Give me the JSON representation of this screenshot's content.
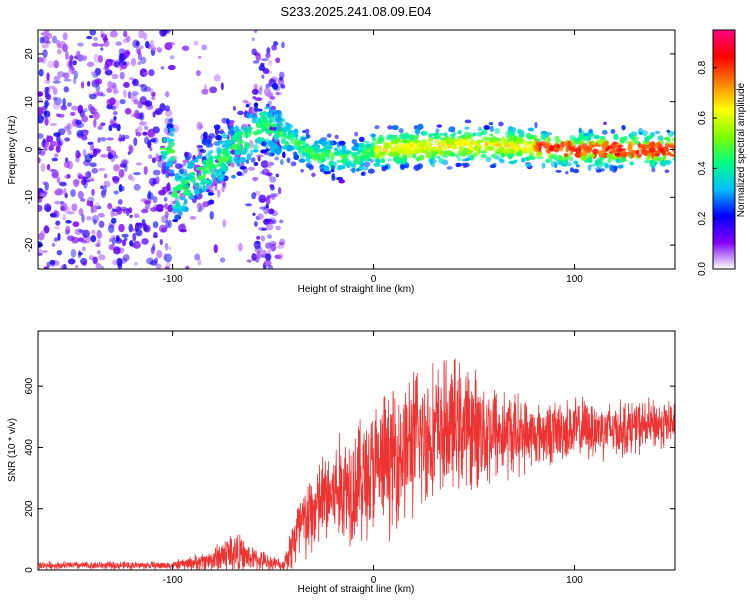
{
  "title": "S233.2025.241.08.09.E04",
  "chart_data": [
    {
      "type": "heatmap",
      "name": "spectrogram",
      "xlabel": "Height of straight line (km)",
      "ylabel": "Frequency (Hz)",
      "xlim": [
        -167,
        150
      ],
      "ylim": [
        -25,
        25
      ],
      "xticks": [
        -100,
        0,
        100
      ],
      "xtick_labels": [
        "-100",
        "0",
        "100"
      ],
      "yticks": [
        -20,
        -10,
        0,
        10,
        20
      ],
      "ytick_labels": [
        "-20",
        "-10",
        "0",
        "10",
        "20"
      ],
      "colorbar": {
        "label": "Normalized spectral amplitude",
        "range": [
          0,
          0.95
        ],
        "ticks": [
          0,
          0.2,
          0.4,
          0.6,
          0.8
        ],
        "tick_labels": [
          "0.0",
          "0.2",
          "0.4",
          "0.6",
          "0.8"
        ],
        "colors": [
          "#ffffff",
          "#8000ff",
          "#0000ff",
          "#00bfff",
          "#00ff80",
          "#80ff00",
          "#ffff00",
          "#ff8000",
          "#ff0000",
          "#ff0080"
        ]
      },
      "signal_band": [
        {
          "x": -100,
          "f": -10
        },
        {
          "x": -85,
          "f": -5
        },
        {
          "x": -70,
          "f": 0
        },
        {
          "x": -55,
          "f": 5
        },
        {
          "x": -45,
          "f": 3
        },
        {
          "x": -30,
          "f": -1
        },
        {
          "x": -10,
          "f": -2
        },
        {
          "x": 0,
          "f": 0
        },
        {
          "x": 50,
          "f": 1
        },
        {
          "x": 100,
          "f": 0
        },
        {
          "x": 150,
          "f": 0
        }
      ],
      "noise_region_x": [
        -167,
        -45
      ]
    },
    {
      "type": "line",
      "name": "snr",
      "xlabel": "Height of straight line (km)",
      "ylabel": "SNR (10 * v/v)",
      "xlim": [
        -167,
        150
      ],
      "ylim": [
        0,
        780
      ],
      "xticks": [
        -100,
        0,
        100
      ],
      "xtick_labels": [
        "-100",
        "0",
        "100"
      ],
      "yticks": [
        0,
        200,
        400,
        600
      ],
      "ytick_labels": [
        "0",
        "200",
        "400",
        "600"
      ],
      "color": "#ee3333",
      "envelope": [
        {
          "x": -167,
          "base": 15,
          "amp": 15
        },
        {
          "x": -100,
          "base": 15,
          "amp": 15
        },
        {
          "x": -82,
          "base": 30,
          "amp": 40
        },
        {
          "x": -70,
          "base": 60,
          "amp": 90
        },
        {
          "x": -62,
          "base": 40,
          "amp": 50
        },
        {
          "x": -45,
          "base": 15,
          "amp": 20
        },
        {
          "x": -38,
          "base": 120,
          "amp": 150
        },
        {
          "x": -25,
          "base": 230,
          "amp": 180
        },
        {
          "x": -12,
          "base": 280,
          "amp": 230
        },
        {
          "x": 0,
          "base": 320,
          "amp": 260
        },
        {
          "x": 20,
          "base": 420,
          "amp": 280
        },
        {
          "x": 40,
          "base": 470,
          "amp": 250
        },
        {
          "x": 60,
          "base": 450,
          "amp": 200
        },
        {
          "x": 80,
          "base": 440,
          "amp": 120
        },
        {
          "x": 100,
          "base": 460,
          "amp": 120
        },
        {
          "x": 120,
          "base": 460,
          "amp": 110
        },
        {
          "x": 150,
          "base": 480,
          "amp": 90
        }
      ]
    }
  ]
}
